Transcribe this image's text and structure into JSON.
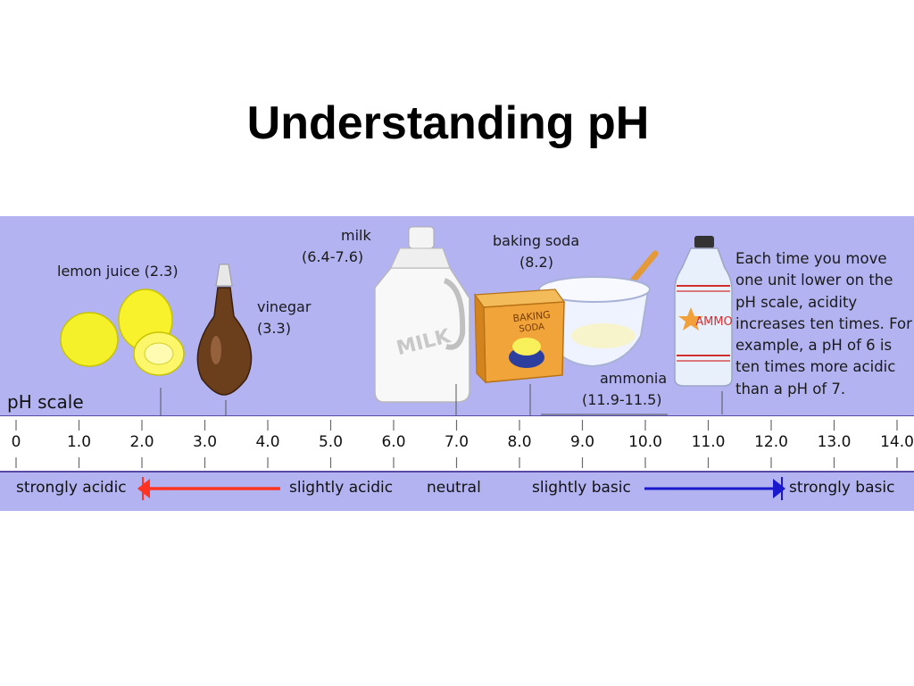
{
  "title": "Understanding pH",
  "scale": {
    "title": "pH scale",
    "ticks": [
      "0",
      "1.0",
      "2.0",
      "3.0",
      "4.0",
      "5.0",
      "6.0",
      "7.0",
      "8.0",
      "9.0",
      "10.0",
      "11.0",
      "12.0",
      "13.0",
      "14.0"
    ]
  },
  "substances": {
    "lemon": "lemon juice (2.3)",
    "vinegar_name": "vinegar",
    "vinegar_value": "(3.3)",
    "milk_name": "milk",
    "milk_value": "(6.4-7.6)",
    "soda_name": "baking soda",
    "soda_value": "(8.2)",
    "ammonia_name": "ammonia",
    "ammonia_value": "(11.9-11.5)"
  },
  "package_text": {
    "milk": "MILK",
    "soda_line1": "BAKING",
    "soda_line2": "SODA",
    "ammonia": "AMMO"
  },
  "note": "Each time you move one unit lower on the pH scale, acidity increases ten times. For example, a pH of 6 is ten times more acidic than a pH of 7.",
  "categories": {
    "strongly_acidic": "strongly acidic",
    "slightly_acidic": "slightly acidic",
    "neutral": "neutral",
    "slightly_basic": "slightly basic",
    "strongly_basic": "strongly basic"
  },
  "colors": {
    "panel_bg": "#b3b3f2",
    "acid_arrow": "#ff3322",
    "base_arrow": "#1a1acc",
    "axis_line": "#5a4aa8"
  }
}
